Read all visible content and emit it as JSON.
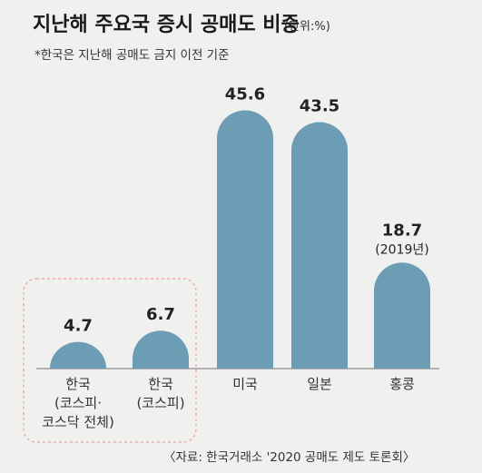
{
  "title": "지난해 주요국 증시 공매도 비중",
  "unit": "(단위:%)",
  "note": "*한국은 지난해 공매도 금지 이전 기준",
  "source": "〈자료: 한국거래소 '2020 공매도 제도 토론회〉",
  "colors": {
    "bar": "#6d9db5",
    "highlight_border": "#e8a0a0",
    "background": "#f0f0ee"
  },
  "chart_data": {
    "type": "bar",
    "title": "지난해 주요국 증시 공매도 비중",
    "ylabel": "",
    "xlabel": "",
    "ylim": [
      0,
      50
    ],
    "categories": [
      [
        "한국",
        "(코스피·",
        "코스닥 전체)"
      ],
      [
        "한국",
        "(코스피)"
      ],
      [
        "미국"
      ],
      [
        "일본"
      ],
      [
        "홍콩"
      ]
    ],
    "values": [
      4.7,
      6.7,
      45.6,
      43.5,
      18.7
    ],
    "value_labels": [
      "4.7",
      "6.7",
      "45.6",
      "43.5",
      "18.7"
    ],
    "value_sublabels": [
      "",
      "",
      "",
      "",
      "(2019년)"
    ],
    "highlighted": [
      0,
      1
    ]
  }
}
